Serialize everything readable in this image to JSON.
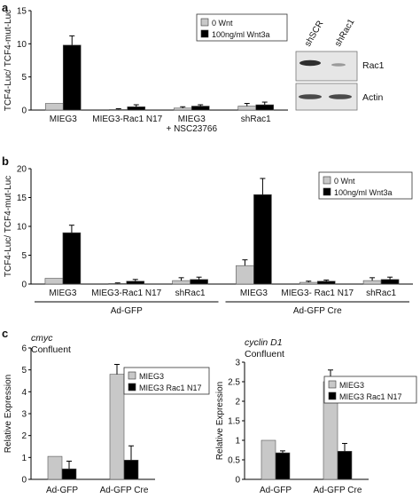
{
  "panels": {
    "a": "a",
    "b": "b",
    "c": "c"
  },
  "colors": {
    "grey_bar": "#c8c8c8",
    "black_bar": "#000000",
    "axis": "#000000",
    "blot_bg": "#e6e6e6",
    "blot_band": "#3a3a3a"
  },
  "western_blot": {
    "lanes": [
      "shSCR",
      "shRac1"
    ],
    "rows": [
      "Rac1",
      "Actin"
    ]
  },
  "chart_data": [
    {
      "id": "a",
      "type": "bar",
      "ylabel": "TCF4-Luc/ TCF4-mut-Luc",
      "ylim": [
        0,
        15
      ],
      "yticks": [
        0,
        5,
        10,
        15
      ],
      "legend": {
        "placement": "top-right",
        "entries": [
          "0 Wnt",
          "100ng/ml Wnt3a"
        ]
      },
      "categories": [
        "MIEG3",
        "MIEG3-Rac1 N17",
        "MIEG3\n+ NSC23766",
        "shRac1"
      ],
      "series": [
        {
          "name": "0 Wnt",
          "color": "grey",
          "values": [
            1.0,
            0.1,
            0.3,
            0.6
          ],
          "errors": [
            0,
            0.1,
            0.2,
            0.4
          ]
        },
        {
          "name": "100ng/ml Wnt3a",
          "color": "black",
          "values": [
            9.8,
            0.5,
            0.6,
            0.8
          ],
          "errors": [
            1.4,
            0.3,
            0.2,
            0.4
          ]
        }
      ]
    },
    {
      "id": "b",
      "type": "bar",
      "ylabel": "TCF4-Luc/ TCF4-mut-Luc",
      "ylim": [
        0,
        20
      ],
      "yticks": [
        0,
        5,
        10,
        15,
        20
      ],
      "legend": {
        "placement": "top-right",
        "entries": [
          "0 Wnt",
          "100ng/ml Wnt3a"
        ]
      },
      "categories": [
        "MIEG3",
        "MIEG3-Rac1 N17",
        "shRac1",
        "MIEG3",
        "MIEG3- Rac1 N17",
        "shRac1"
      ],
      "groups": [
        {
          "label": "Ad-GFP",
          "span": [
            0,
            2
          ]
        },
        {
          "label": "Ad-GFP Cre",
          "span": [
            3,
            5
          ]
        }
      ],
      "series": [
        {
          "name": "0 Wnt",
          "color": "grey",
          "values": [
            1.0,
            0.1,
            0.6,
            3.2,
            0.3,
            0.6
          ],
          "errors": [
            0,
            0.1,
            0.5,
            1.0,
            0.2,
            0.5
          ]
        },
        {
          "name": "100ng/ml Wnt3a",
          "color": "black",
          "values": [
            8.9,
            0.5,
            0.8,
            15.5,
            0.5,
            0.8
          ],
          "errors": [
            1.3,
            0.3,
            0.4,
            2.8,
            0.2,
            0.4
          ]
        }
      ]
    },
    {
      "id": "c-left",
      "type": "bar",
      "title": "cmyc",
      "subtitle": "Confluent",
      "ylabel": "Relative Expression",
      "ylim": [
        0,
        6
      ],
      "yticks": [
        0,
        1,
        2,
        3,
        4,
        5,
        6
      ],
      "legend": {
        "placement": "top-right",
        "entries": [
          "MIEG3",
          "MIEG3 Rac1 N17"
        ]
      },
      "categories": [
        "Ad-GFP",
        "Ad-GFP Cre"
      ],
      "series": [
        {
          "name": "MIEG3",
          "color": "grey",
          "values": [
            1.05,
            4.8
          ],
          "errors": [
            0,
            0.45
          ]
        },
        {
          "name": "MIEG3 Rac1 N17",
          "color": "black",
          "values": [
            0.48,
            0.88
          ],
          "errors": [
            0.35,
            0.65
          ]
        }
      ]
    },
    {
      "id": "c-right",
      "type": "bar",
      "title": "cyclin D1",
      "subtitle": "Confluent",
      "ylabel": "Relative Expression",
      "ylim": [
        0,
        3
      ],
      "yticks": [
        0,
        0.5,
        1,
        1.5,
        2,
        2.5,
        3
      ],
      "legend": {
        "placement": "top-right",
        "entries": [
          "MIEG3",
          "MIEG3 Rac1 N17"
        ]
      },
      "categories": [
        "Ad-GFP",
        "Ad-GFP Cre"
      ],
      "series": [
        {
          "name": "MIEG3",
          "color": "grey",
          "values": [
            1.0,
            2.5
          ],
          "errors": [
            0,
            0.3
          ]
        },
        {
          "name": "MIEG3 Rac1 N17",
          "color": "black",
          "values": [
            0.68,
            0.72
          ],
          "errors": [
            0.05,
            0.2
          ]
        }
      ]
    }
  ]
}
